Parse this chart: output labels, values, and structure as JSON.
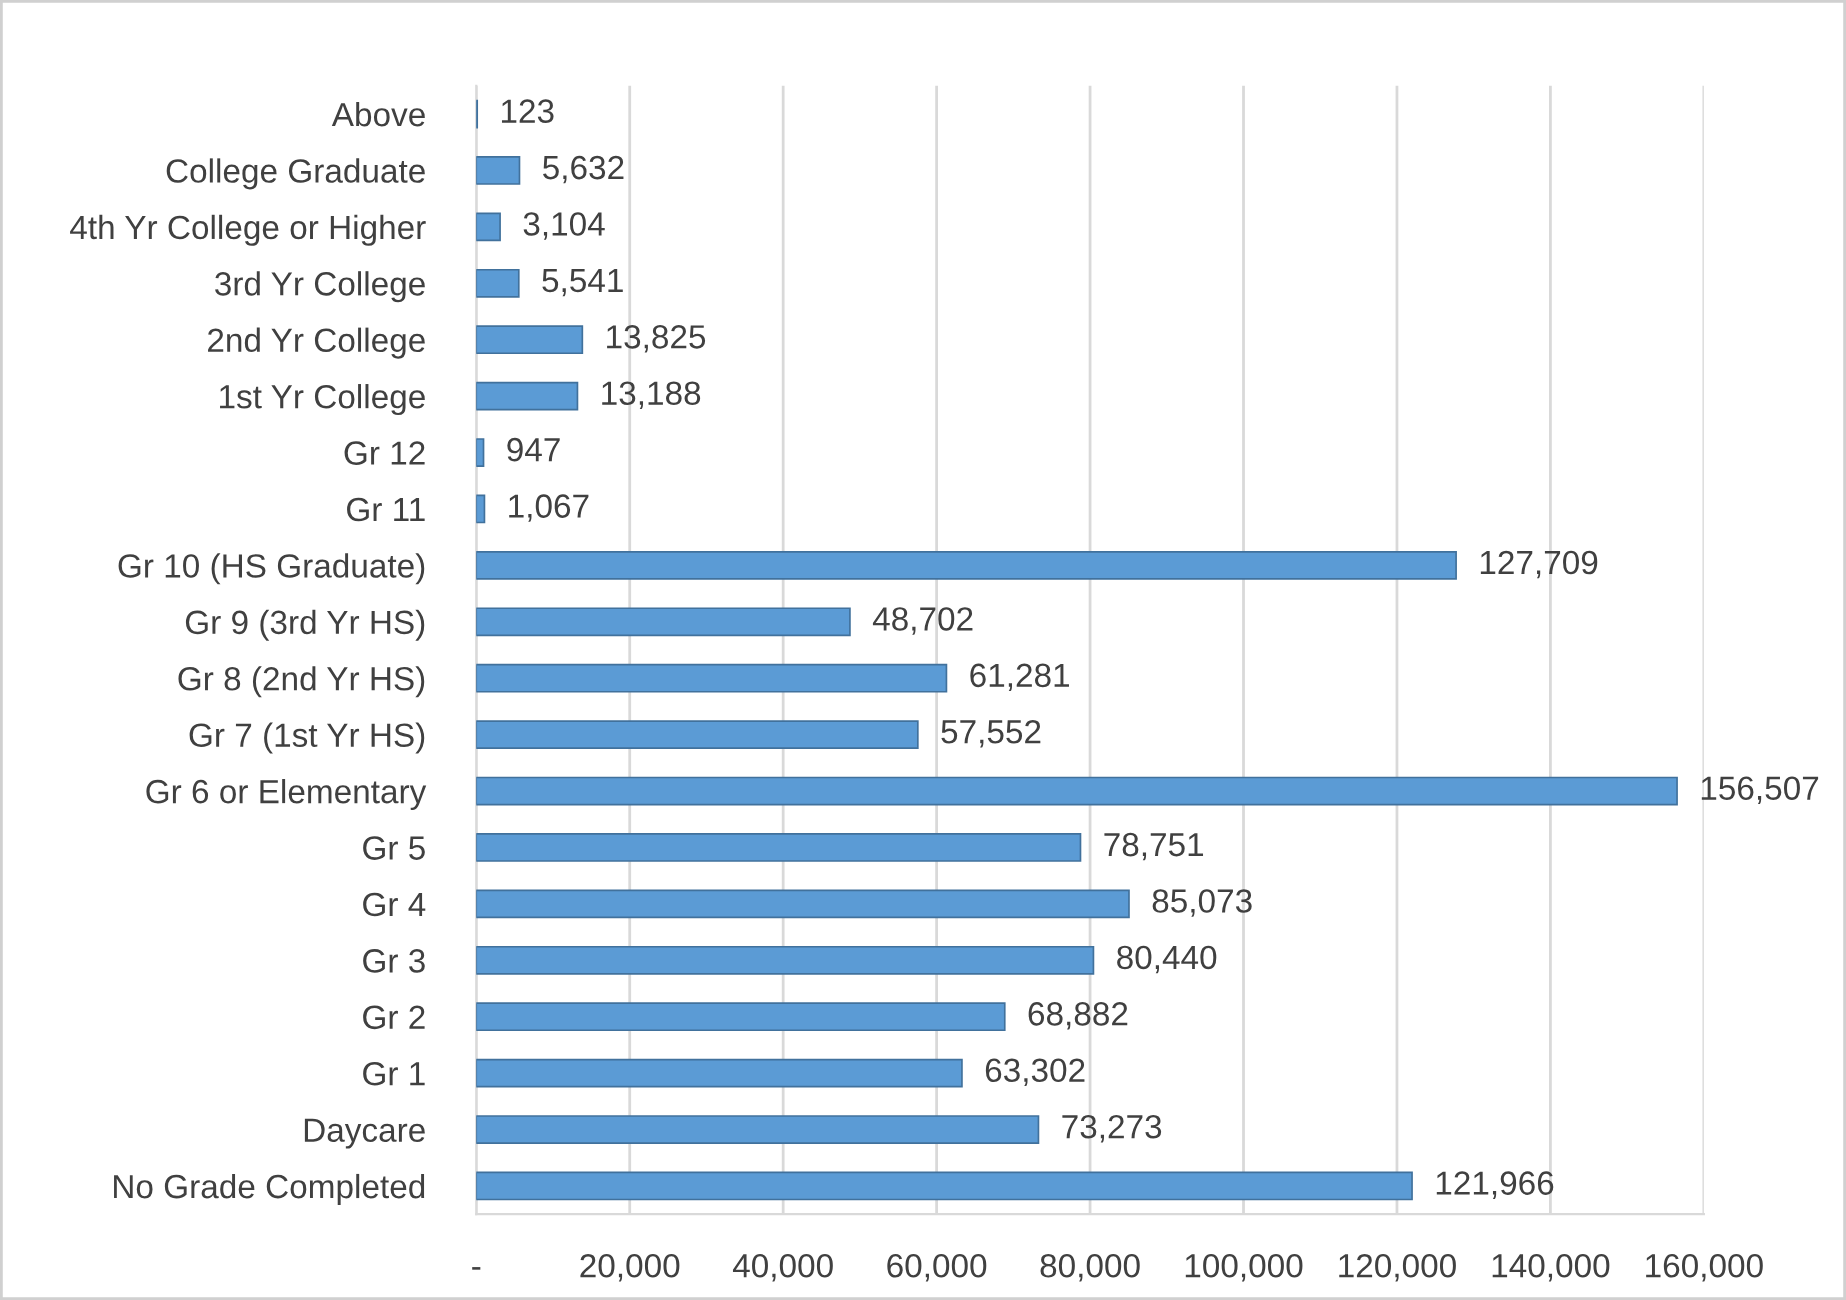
{
  "chart_data": {
    "type": "bar",
    "orientation": "horizontal",
    "categories": [
      "Above",
      "College Graduate",
      "4th Yr College or Higher",
      "3rd Yr College",
      "2nd Yr College",
      "1st Yr College",
      "Gr 12",
      "Gr 11",
      "Gr 10 (HS Graduate)",
      "Gr 9 (3rd Yr HS)",
      "Gr 8 (2nd Yr HS)",
      "Gr 7 (1st Yr HS)",
      "Gr 6 or Elementary",
      "Gr 5",
      "Gr 4",
      "Gr 3",
      "Gr 2",
      "Gr 1",
      "Daycare",
      "No Grade Completed"
    ],
    "values": [
      123,
      5632,
      3104,
      5541,
      13825,
      13188,
      947,
      1067,
      127709,
      48702,
      61281,
      57552,
      156507,
      78751,
      85073,
      80440,
      68882,
      63302,
      73273,
      121966
    ],
    "value_labels": [
      "123",
      "5,632",
      "3,104",
      "5,541",
      "13,825",
      "13,188",
      "947",
      "1,067",
      "127,709",
      "48,702",
      "61,281",
      "57,552",
      "156,507",
      "78,751",
      "85,073",
      "80,440",
      "68,882",
      "63,302",
      "73,273",
      "121,966"
    ],
    "color": "#5b9bd5",
    "xlim": [
      0,
      160000
    ],
    "xticks": [
      {
        "value": 0,
        "label": "-"
      },
      {
        "value": 20000,
        "label": "20,000"
      },
      {
        "value": 40000,
        "label": "40,000"
      },
      {
        "value": 60000,
        "label": "60,000"
      },
      {
        "value": 80000,
        "label": "80,000"
      },
      {
        "value": 100000,
        "label": "100,000"
      },
      {
        "value": 120000,
        "label": "120,000"
      },
      {
        "value": 140000,
        "label": "140,000"
      },
      {
        "value": 160000,
        "label": "160,000"
      }
    ],
    "grid": "x"
  }
}
